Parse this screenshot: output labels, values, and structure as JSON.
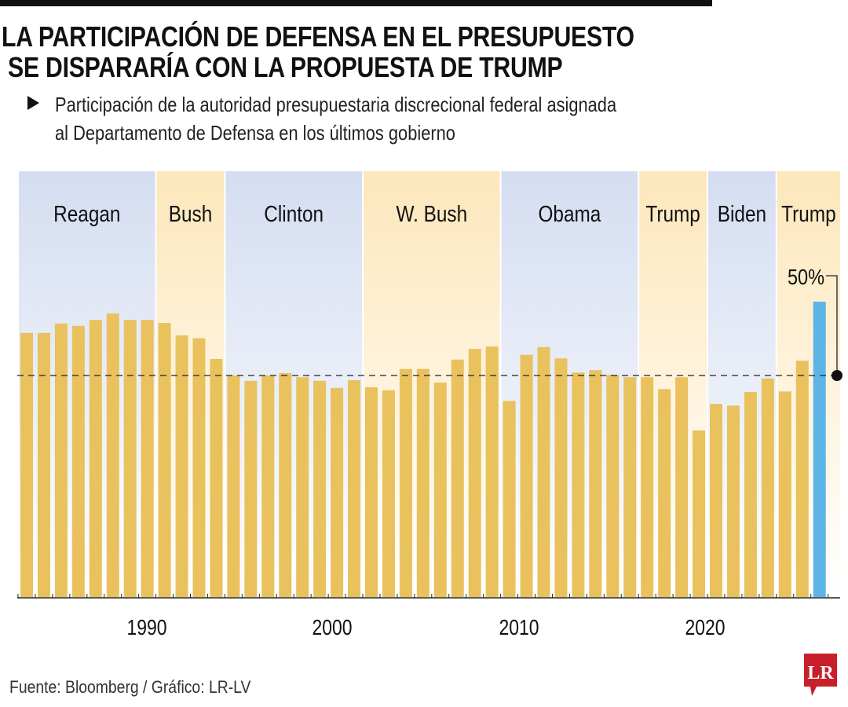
{
  "title_lines": [
    "LA PARTICIPACIÓN DE DEFENSA EN EL PRESUPUESTO",
    "SE DISPARARÍA CON LA PROPUESTA DE TRUMP"
  ],
  "subtitle_lines": [
    "Participación de la autoridad presupuestaria discrecional federal asignada",
    "al Departamento de Defensa en los últimos gobierno"
  ],
  "source": "Fuente: Bloomberg  / Gráfico: LR-LV",
  "logo_text": "LR",
  "colors": {
    "bar": "#e9c15d",
    "highlight_bar": "#5db4e6",
    "band_blue": "#d4ddf1",
    "band_yellow": "#fde7bb",
    "logo_red": "#c8202a"
  },
  "chart_data": {
    "type": "bar",
    "values": [
      44.7,
      44.7,
      46.3,
      45.9,
      46.9,
      48.0,
      46.9,
      46.9,
      46.4,
      44.3,
      43.8,
      40.3,
      37.5,
      36.6,
      37.5,
      37.9,
      37.2,
      36.6,
      35.4,
      36.7,
      35.5,
      35.0,
      38.6,
      38.6,
      36.3,
      40.2,
      42.0,
      42.4,
      33.2,
      41.0,
      42.3,
      40.4,
      38.0,
      38.4,
      37.6,
      37.2,
      37.2,
      35.2,
      37.2,
      28.2,
      32.7,
      32.4,
      34.7,
      37.0,
      34.8,
      40.0,
      50.0
    ],
    "highlight_index": 46,
    "highlight_label": "50%",
    "reference_line": 37.5,
    "ylim": [
      0,
      50
    ],
    "x_ticks": [
      "1990",
      "2000",
      "2010",
      "2020"
    ],
    "administrations": [
      {
        "name": "Reagan",
        "bars": 8,
        "color": "blue"
      },
      {
        "name": "Bush",
        "bars": 4,
        "color": "yellow"
      },
      {
        "name": "Clinton",
        "bars": 8,
        "color": "blue"
      },
      {
        "name": "W. Bush",
        "bars": 8,
        "color": "yellow"
      },
      {
        "name": "Obama",
        "bars": 8,
        "color": "blue"
      },
      {
        "name": "Trump",
        "bars": 4,
        "color": "yellow"
      },
      {
        "name": "Biden",
        "bars": 4,
        "color": "blue"
      },
      {
        "name": "Trump",
        "bars": 3,
        "color": "yellow"
      }
    ],
    "grid": false
  }
}
